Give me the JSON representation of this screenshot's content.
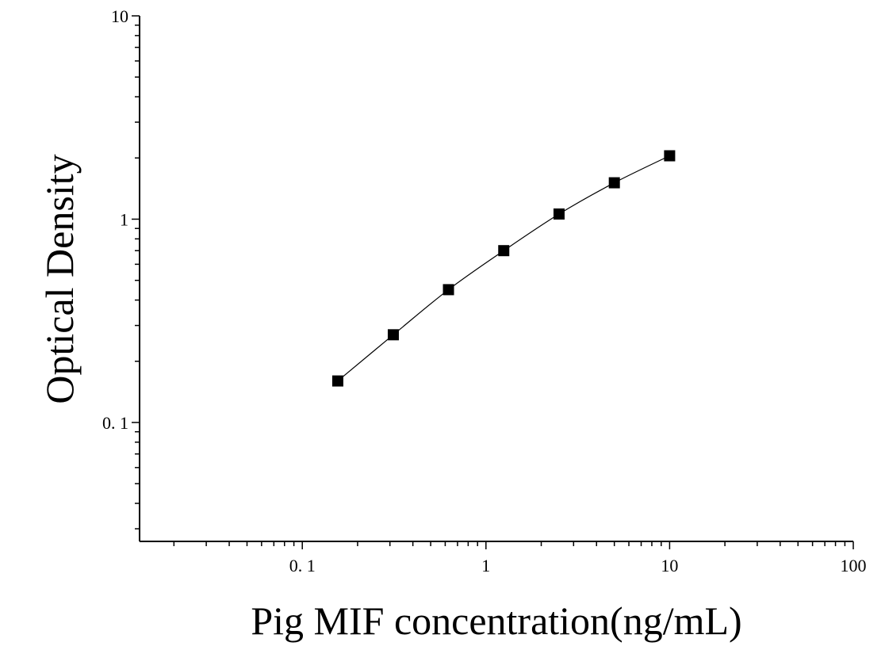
{
  "chart_data": {
    "type": "scatter",
    "xlabel": "Pig MIF concentration(ng/mL)",
    "ylabel": "Optical Density",
    "x_scale": "log",
    "y_scale": "log",
    "xlim": [
      0.013,
      100
    ],
    "ylim": [
      0.026,
      10
    ],
    "x_ticks": [
      {
        "value": 0.1,
        "label": "0. 1"
      },
      {
        "value": 1,
        "label": "1"
      },
      {
        "value": 10,
        "label": "10"
      },
      {
        "value": 100,
        "label": "100"
      }
    ],
    "y_ticks": [
      {
        "value": 0.1,
        "label": "0. 1"
      },
      {
        "value": 1,
        "label": "1"
      },
      {
        "value": 10,
        "label": "10"
      }
    ],
    "grid": false,
    "legend": "none",
    "marker": "square",
    "series": [
      {
        "x": [
          0.156,
          0.313,
          0.625,
          1.25,
          2.5,
          5,
          10
        ],
        "y": [
          0.16,
          0.27,
          0.45,
          0.7,
          1.06,
          1.51,
          2.05
        ],
        "fit_curve": true
      }
    ],
    "colors": {
      "marker": "#000000",
      "line": "#000000",
      "axis": "#000000"
    }
  }
}
